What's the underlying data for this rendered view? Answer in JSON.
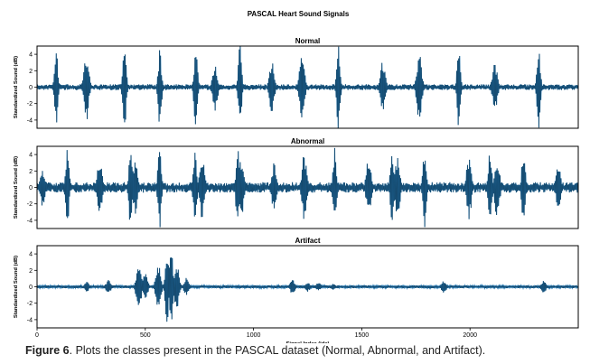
{
  "figure": {
    "suptitle": "PASCAL Heart Sound Signals",
    "caption_label": "Figure 6",
    "caption_text": ". Plots the classes present in the PASCAL  dataset (Normal, Abnormal, and Artifact)."
  },
  "colors": {
    "signal": "#1f77b4",
    "edge": "#0a0a0a",
    "axis": "#000000"
  },
  "chart_data": [
    {
      "type": "line",
      "title": "Normal",
      "ylabel": "Standardized Sound (dB)",
      "xlabel": "",
      "xlim": [
        0,
        2500
      ],
      "ylim": [
        -5,
        5
      ],
      "yticks": [
        -4,
        -2,
        0,
        2,
        4
      ],
      "xticks": [],
      "grid": false,
      "baseline_amplitude": 0.25,
      "spikes": [
        {
          "x": 88,
          "amp": 5.2
        },
        {
          "x": 228,
          "amp": 4.3
        },
        {
          "x": 404,
          "amp": 5.2
        },
        {
          "x": 567,
          "amp": 4.8
        },
        {
          "x": 733,
          "amp": 5.2
        },
        {
          "x": 822,
          "amp": 2.9
        },
        {
          "x": 937,
          "amp": 5.2
        },
        {
          "x": 1085,
          "amp": 3.3
        },
        {
          "x": 1224,
          "amp": 4.3
        },
        {
          "x": 1392,
          "amp": 5.2
        },
        {
          "x": 1598,
          "amp": 3.4
        },
        {
          "x": 1765,
          "amp": 4.4
        },
        {
          "x": 1948,
          "amp": 5.2
        },
        {
          "x": 2115,
          "amp": 3.0
        },
        {
          "x": 2317,
          "amp": 5.2
        }
      ]
    },
    {
      "type": "line",
      "title": "Abnormal",
      "ylabel": "Standardized Sound (dB)",
      "xlabel": "",
      "xlim": [
        0,
        2500
      ],
      "ylim": [
        -5,
        5
      ],
      "yticks": [
        -4,
        -2,
        0,
        2,
        4
      ],
      "xticks": [],
      "grid": false,
      "baseline_amplitude": 0.45,
      "spikes": [
        {
          "x": 25,
          "amp": 2.3
        },
        {
          "x": 140,
          "amp": 5.2
        },
        {
          "x": 290,
          "amp": 3.8
        },
        {
          "x": 432,
          "amp": 5.0
        },
        {
          "x": 453,
          "amp": 3.3
        },
        {
          "x": 566,
          "amp": 5.2
        },
        {
          "x": 730,
          "amp": 4.9
        },
        {
          "x": 762,
          "amp": 4.0
        },
        {
          "x": 927,
          "amp": 5.2
        },
        {
          "x": 944,
          "amp": 3.8
        },
        {
          "x": 1095,
          "amp": 3.0
        },
        {
          "x": 1235,
          "amp": 4.3
        },
        {
          "x": 1375,
          "amp": 5.2
        },
        {
          "x": 1532,
          "amp": 3.7
        },
        {
          "x": 1640,
          "amp": 4.9
        },
        {
          "x": 1665,
          "amp": 3.8
        },
        {
          "x": 1790,
          "amp": 5.2
        },
        {
          "x": 1995,
          "amp": 4.0
        },
        {
          "x": 2093,
          "amp": 5.0
        },
        {
          "x": 2125,
          "amp": 3.8
        },
        {
          "x": 2247,
          "amp": 5.2
        },
        {
          "x": 2408,
          "amp": 2.7
        }
      ]
    },
    {
      "type": "line",
      "title": "Artifact",
      "ylabel": "Standardized Sound (dB)",
      "xlabel": "Signal Index (idx)",
      "xlim": [
        0,
        2500
      ],
      "ylim": [
        -5,
        5
      ],
      "yticks": [
        -4,
        -2,
        0,
        2,
        4
      ],
      "xticks": [
        0,
        500,
        1000,
        1500,
        2000
      ],
      "grid": false,
      "baseline_amplitude": 0.12,
      "spikes": [
        {
          "x": 230,
          "amp": 0.6
        },
        {
          "x": 330,
          "amp": 0.9
        },
        {
          "x": 470,
          "amp": 3.2
        },
        {
          "x": 500,
          "amp": 1.6
        },
        {
          "x": 560,
          "amp": 2.8
        },
        {
          "x": 600,
          "amp": 5.2
        },
        {
          "x": 620,
          "amp": 5.2
        },
        {
          "x": 645,
          "amp": 3.0
        },
        {
          "x": 690,
          "amp": 1.1
        },
        {
          "x": 1180,
          "amp": 0.9
        },
        {
          "x": 1250,
          "amp": 0.6
        },
        {
          "x": 1300,
          "amp": 0.5
        },
        {
          "x": 1370,
          "amp": 0.4
        },
        {
          "x": 1880,
          "amp": 0.8
        },
        {
          "x": 2340,
          "amp": 0.8
        }
      ]
    }
  ]
}
